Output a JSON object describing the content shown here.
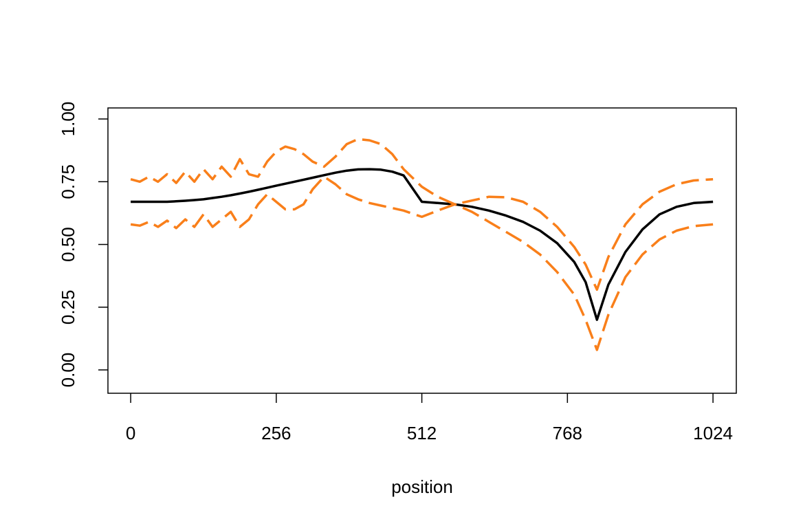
{
  "chart_data": {
    "type": "line",
    "xlabel": "position",
    "x": [
      0,
      16,
      32,
      48,
      64,
      80,
      96,
      112,
      128,
      144,
      160,
      176,
      192,
      208,
      224,
      240,
      256,
      272,
      288,
      304,
      320,
      340,
      360,
      380,
      400,
      420,
      440,
      460,
      480,
      512,
      540,
      570,
      600,
      630,
      660,
      690,
      720,
      750,
      780,
      800,
      820,
      840,
      870,
      900,
      930,
      960,
      990,
      1024
    ],
    "series": [
      {
        "color": "#000000",
        "dash": false,
        "values": [
          0.67,
          0.67,
          0.67,
          0.67,
          0.67,
          0.672,
          0.674,
          0.677,
          0.68,
          0.685,
          0.69,
          0.696,
          0.703,
          0.71,
          0.718,
          0.726,
          0.734,
          0.742,
          0.75,
          0.758,
          0.766,
          0.776,
          0.786,
          0.794,
          0.799,
          0.8,
          0.798,
          0.79,
          0.775,
          0.67,
          0.665,
          0.66,
          0.65,
          0.635,
          0.615,
          0.59,
          0.555,
          0.505,
          0.43,
          0.35,
          0.2,
          0.34,
          0.47,
          0.56,
          0.62,
          0.65,
          0.665,
          0.67
        ]
      },
      {
        "color": "#f97f1a",
        "dash": true,
        "values": [
          0.76,
          0.75,
          0.77,
          0.75,
          0.78,
          0.745,
          0.79,
          0.75,
          0.8,
          0.76,
          0.81,
          0.77,
          0.84,
          0.78,
          0.77,
          0.83,
          0.87,
          0.89,
          0.88,
          0.86,
          0.83,
          0.81,
          0.85,
          0.9,
          0.92,
          0.915,
          0.9,
          0.86,
          0.8,
          0.73,
          0.69,
          0.66,
          0.675,
          0.69,
          0.688,
          0.67,
          0.63,
          0.57,
          0.49,
          0.42,
          0.32,
          0.45,
          0.58,
          0.66,
          0.71,
          0.74,
          0.755,
          0.76
        ]
      },
      {
        "color": "#f97f1a",
        "dash": true,
        "values": [
          0.58,
          0.575,
          0.59,
          0.57,
          0.595,
          0.565,
          0.6,
          0.57,
          0.62,
          0.57,
          0.6,
          0.63,
          0.57,
          0.6,
          0.66,
          0.7,
          0.67,
          0.64,
          0.64,
          0.66,
          0.72,
          0.77,
          0.74,
          0.7,
          0.68,
          0.665,
          0.655,
          0.645,
          0.635,
          0.61,
          0.635,
          0.66,
          0.63,
          0.59,
          0.55,
          0.51,
          0.46,
          0.39,
          0.3,
          0.2,
          0.08,
          0.22,
          0.37,
          0.46,
          0.52,
          0.555,
          0.573,
          0.58
        ]
      }
    ],
    "xlim": [
      -40,
      1065
    ],
    "ylim": [
      -0.093,
      1.044
    ],
    "xticks": [
      0,
      256,
      512,
      768,
      1024
    ],
    "yticks": [
      {
        "value": 0,
        "label": "0.00"
      },
      {
        "value": 0.25,
        "label": "0.25"
      },
      {
        "value": 0.5,
        "label": "0.50"
      },
      {
        "value": 0.75,
        "label": "0.75"
      },
      {
        "value": 1,
        "label": "1.00"
      }
    ],
    "grid": false
  }
}
